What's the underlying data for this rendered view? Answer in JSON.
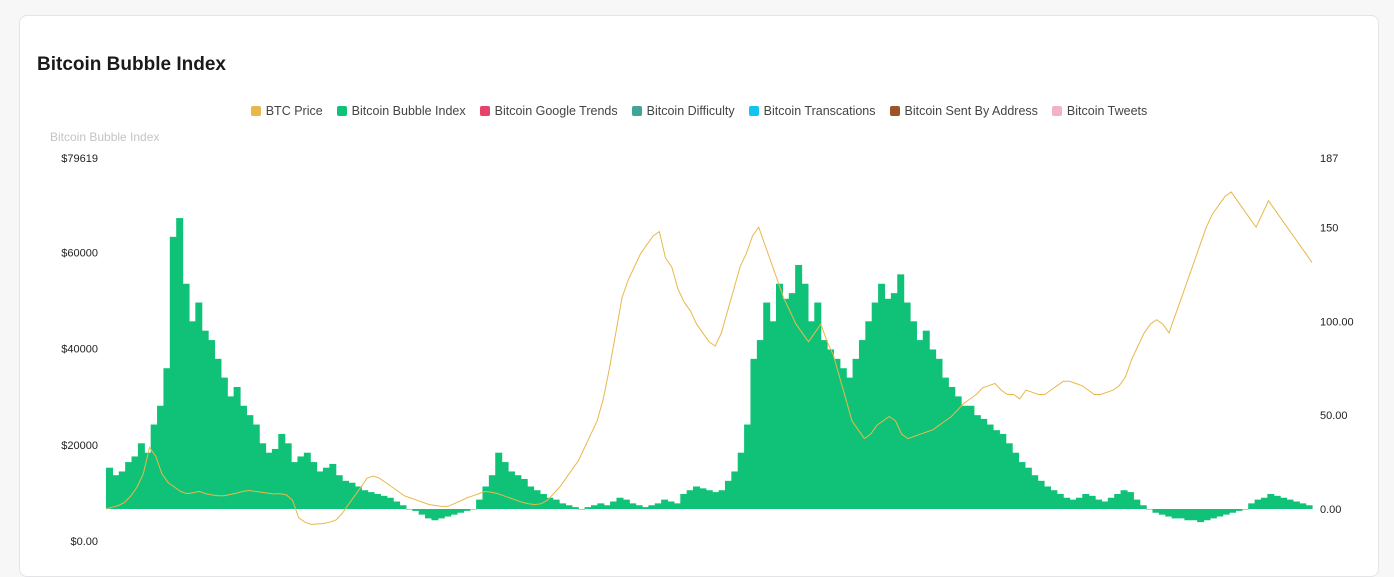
{
  "card": {
    "title": "Bitcoin Bubble Index"
  },
  "chart_data": {
    "type": "bar+line",
    "title": "Bitcoin Bubble Index",
    "ylabel_left_title": "Bitcoin Bubble Index",
    "left_axis": {
      "ticks": [
        "$79619",
        "$60000",
        "$40000",
        "$20000",
        "$0.00"
      ],
      "values": [
        79619,
        60000,
        40000,
        20000,
        0
      ],
      "range": [
        0,
        79619
      ]
    },
    "right_axis": {
      "ticks": [
        "187",
        "150",
        "100.00",
        "50.00",
        "0.00"
      ],
      "values": [
        187,
        150,
        100,
        50,
        0
      ]
    },
    "legend": [
      {
        "name": "BTC Price",
        "color": "#e8b84a"
      },
      {
        "name": "Bitcoin Bubble Index",
        "color": "#10c278"
      },
      {
        "name": "Bitcoin Google Trends",
        "color": "#e8416a"
      },
      {
        "name": "Bitcoin Difficulty",
        "color": "#3fa596"
      },
      {
        "name": "Bitcoin Transcations",
        "color": "#13c4ef"
      },
      {
        "name": "Bitcoin Sent By Address",
        "color": "#9c5427"
      },
      {
        "name": "Bitcoin Tweets",
        "color": "#f3b2c8"
      }
    ],
    "series": [
      {
        "name": "Bitcoin Bubble Index",
        "axis": "right",
        "style": "bars",
        "color": "#10c278",
        "values": [
          22,
          18,
          20,
          25,
          28,
          35,
          30,
          45,
          55,
          75,
          145,
          155,
          120,
          100,
          110,
          95,
          90,
          80,
          70,
          60,
          65,
          55,
          50,
          45,
          35,
          30,
          32,
          40,
          35,
          25,
          28,
          30,
          25,
          20,
          22,
          24,
          18,
          15,
          14,
          12,
          10,
          9,
          8,
          7,
          6,
          4,
          2,
          0,
          -1,
          -3,
          -5,
          -6,
          -5,
          -4,
          -3,
          -2,
          -1,
          0,
          5,
          12,
          18,
          30,
          25,
          20,
          18,
          16,
          12,
          10,
          8,
          6,
          5,
          3,
          2,
          1,
          0,
          1,
          2,
          3,
          2,
          4,
          6,
          5,
          3,
          2,
          1,
          2,
          3,
          5,
          4,
          3,
          8,
          10,
          12,
          11,
          10,
          9,
          10,
          15,
          20,
          30,
          45,
          80,
          90,
          110,
          100,
          120,
          112,
          115,
          130,
          120,
          100,
          110,
          90,
          85,
          80,
          75,
          70,
          80,
          90,
          100,
          110,
          120,
          112,
          115,
          125,
          110,
          100,
          90,
          95,
          85,
          80,
          70,
          65,
          60,
          55,
          55,
          50,
          48,
          45,
          42,
          40,
          35,
          30,
          25,
          22,
          18,
          15,
          12,
          10,
          8,
          6,
          5,
          6,
          8,
          7,
          5,
          4,
          6,
          8,
          10,
          9,
          5,
          2,
          0,
          -2,
          -3,
          -4,
          -5,
          -5,
          -6,
          -6,
          -7,
          -6,
          -5,
          -4,
          -3,
          -2,
          -1,
          0,
          3,
          5,
          6,
          8,
          7,
          6,
          5,
          4,
          3,
          2
        ]
      },
      {
        "name": "BTC Price",
        "axis": "left",
        "style": "line",
        "color": "#e8b84a",
        "values": [
          0,
          400,
          800,
          1500,
          3000,
          5000,
          8000,
          14000,
          12000,
          8000,
          6000,
          5000,
          4000,
          3500,
          3700,
          4000,
          3500,
          3200,
          3000,
          3000,
          3300,
          3600,
          4000,
          4200,
          4000,
          3800,
          3600,
          3400,
          3500,
          3200,
          2000,
          -2000,
          -3000,
          -3500,
          -3400,
          -3300,
          -3000,
          -2500,
          -1000,
          1000,
          3000,
          5000,
          7000,
          7500,
          7000,
          6000,
          5000,
          4000,
          3000,
          2500,
          2000,
          1500,
          1000,
          800,
          600,
          600,
          1200,
          1800,
          2500,
          3000,
          3500,
          4000,
          3800,
          3500,
          3000,
          2500,
          2000,
          1500,
          1200,
          1000,
          1200,
          2000,
          3500,
          5000,
          7000,
          9000,
          11000,
          14000,
          17000,
          20000,
          25000,
          32000,
          40000,
          48000,
          52000,
          55000,
          58000,
          60000,
          62000,
          63000,
          57000,
          55000,
          50000,
          47000,
          45000,
          42000,
          40000,
          38000,
          37000,
          40000,
          45000,
          50000,
          55000,
          58000,
          62000,
          64000,
          60000,
          56000,
          52000,
          48000,
          45000,
          42000,
          40000,
          38000,
          40000,
          42000,
          38000,
          35000,
          30000,
          25000,
          20000,
          18000,
          16000,
          17000,
          19000,
          20000,
          21000,
          20000,
          17000,
          16000,
          16500,
          17000,
          17500,
          18000,
          19000,
          20000,
          21000,
          22500,
          24000,
          25000,
          26000,
          27500,
          28000,
          28500,
          27000,
          26000,
          26000,
          25000,
          27000,
          26500,
          26000,
          26000,
          27000,
          28000,
          29000,
          29000,
          28500,
          28000,
          27000,
          26000,
          26000,
          26500,
          27000,
          28000,
          30000,
          34000,
          37000,
          40000,
          42000,
          43000,
          42000,
          40000,
          44000,
          48000,
          52000,
          56000,
          60000,
          64000,
          67000,
          69000,
          71000,
          72000,
          70000,
          68000,
          66000,
          64000,
          67000,
          70000,
          68000,
          66000,
          64000,
          62000,
          60000,
          58000,
          56000
        ]
      }
    ]
  }
}
